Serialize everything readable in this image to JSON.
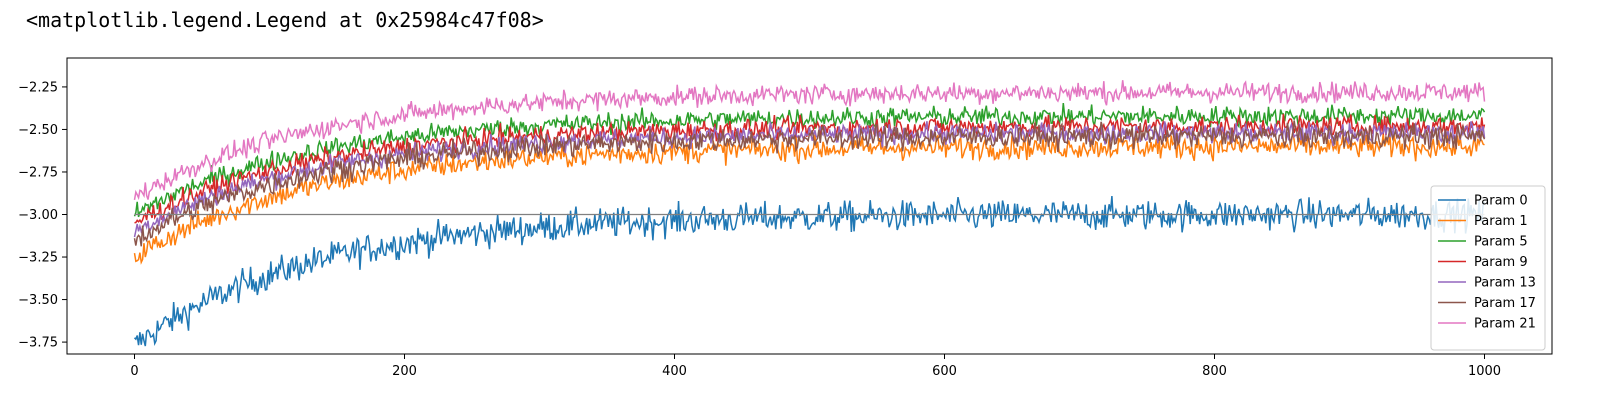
{
  "output": {
    "repr_text": "<matplotlib.legend.Legend at 0x25984c47f08>"
  },
  "chart_data": {
    "type": "line",
    "title": "",
    "xlabel": "",
    "ylabel": "",
    "xlim": [
      -50,
      1050
    ],
    "ylim": [
      -3.82,
      -2.08
    ],
    "xticks": [
      0,
      200,
      400,
      600,
      800,
      1000
    ],
    "yticks": [
      -3.75,
      -3.5,
      -3.25,
      -3.0,
      -2.75,
      -2.5,
      -2.25
    ],
    "xtick_labels": [
      "0",
      "200",
      "400",
      "600",
      "800",
      "1000"
    ],
    "ytick_labels": [
      "−3.75",
      "−3.50",
      "−3.25",
      "−3.00",
      "−2.75",
      "−2.50",
      "−2.25"
    ],
    "grid": false,
    "legend_position": "lower-right",
    "reference_line": {
      "y": -3.0,
      "x": [
        0,
        1000
      ],
      "color": "#808080"
    },
    "series": [
      {
        "name": "Param 0",
        "color": "#1f77b4",
        "start": -3.77,
        "end": -3.0,
        "noise": 0.045
      },
      {
        "name": "Param 1",
        "color": "#ff7f0e",
        "start": -3.25,
        "end": -2.6,
        "noise": 0.035
      },
      {
        "name": "Param 5",
        "color": "#2ca02c",
        "start": -3.0,
        "end": -2.42,
        "noise": 0.03
      },
      {
        "name": "Param 9",
        "color": "#d62728",
        "start": -3.05,
        "end": -2.48,
        "noise": 0.03
      },
      {
        "name": "Param 13",
        "color": "#9467bd",
        "start": -3.1,
        "end": -2.52,
        "noise": 0.03
      },
      {
        "name": "Param 17",
        "color": "#8c564b",
        "start": -3.15,
        "end": -2.54,
        "noise": 0.035
      },
      {
        "name": "Param 21",
        "color": "#e377c2",
        "start": -2.9,
        "end": -2.28,
        "noise": 0.03
      }
    ]
  }
}
